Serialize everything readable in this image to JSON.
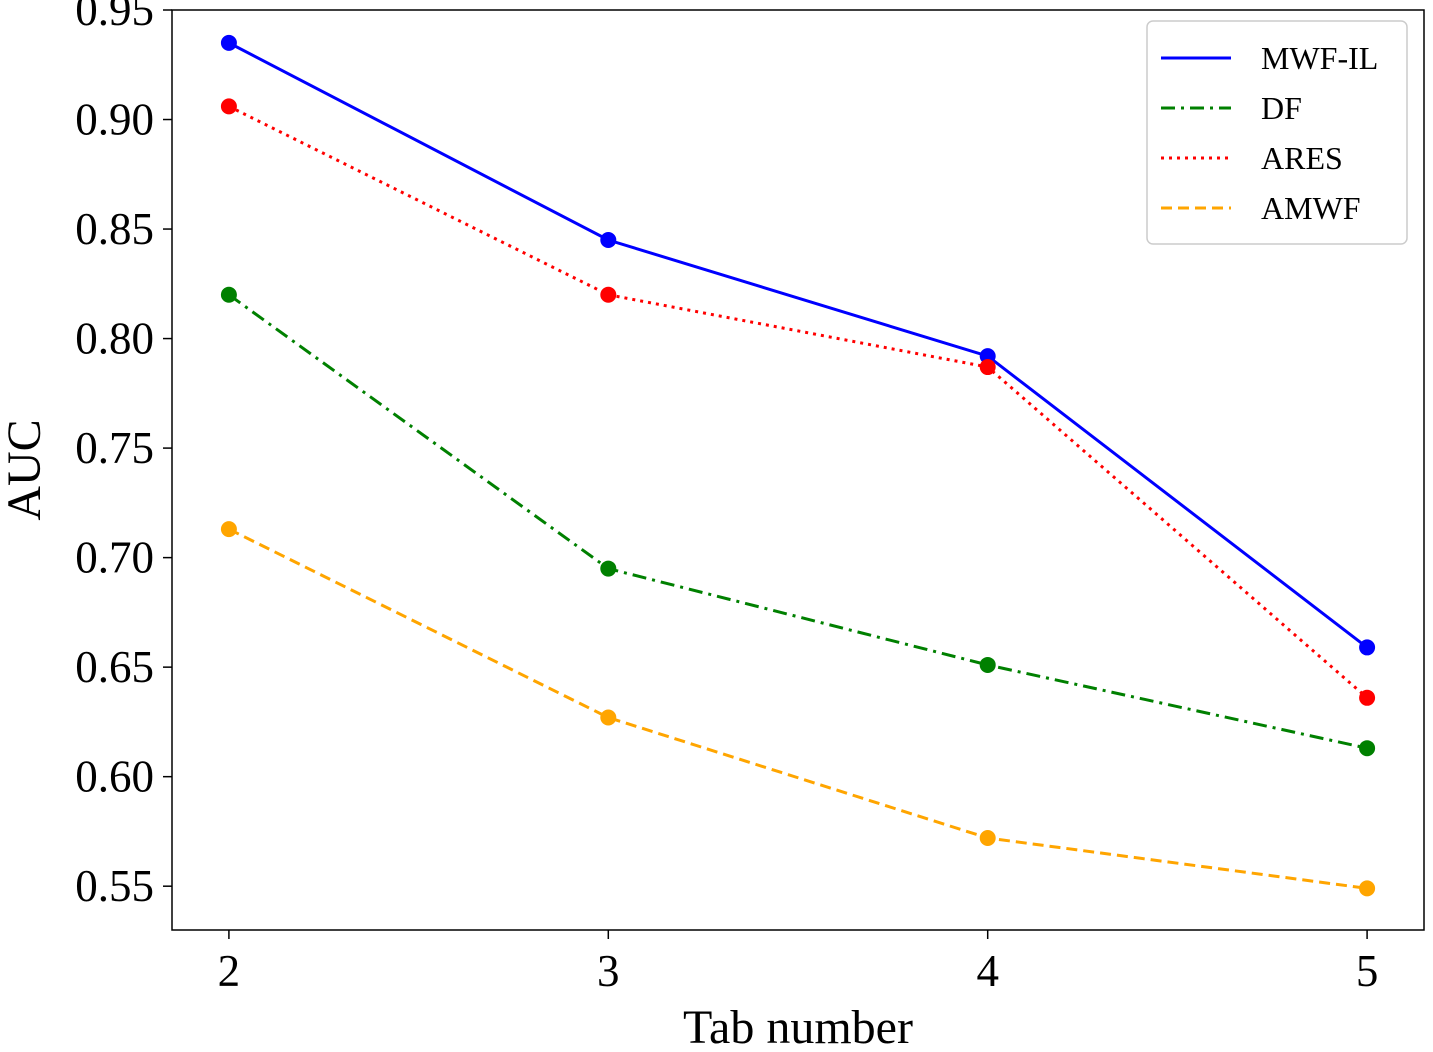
{
  "chart_data": {
    "type": "line",
    "title": "",
    "xlabel": "Tab number",
    "ylabel": "AUC",
    "x": [
      2,
      3,
      4,
      5
    ],
    "x_tick_labels": [
      "2",
      "3",
      "4",
      "5"
    ],
    "y_ticks": [
      0.55,
      0.6,
      0.65,
      0.7,
      0.75,
      0.8,
      0.85,
      0.9,
      0.95
    ],
    "y_tick_labels": [
      "0.55",
      "0.60",
      "0.65",
      "0.70",
      "0.75",
      "0.80",
      "0.85",
      "0.90",
      "0.95"
    ],
    "ylim": [
      0.53,
      0.95
    ],
    "xlim": [
      1.85,
      5.15
    ],
    "grid": false,
    "legend_position": "top-right",
    "series": [
      {
        "name": "MWF-IL",
        "values": [
          0.935,
          0.845,
          0.792,
          0.659
        ],
        "color": "#0000ff",
        "line_style": "solid",
        "marker": "circle"
      },
      {
        "name": "DF",
        "values": [
          0.82,
          0.695,
          0.651,
          0.613
        ],
        "color": "#008000",
        "line_style": "dashdot",
        "marker": "circle"
      },
      {
        "name": "ARES",
        "values": [
          0.906,
          0.82,
          0.787,
          0.636
        ],
        "color": "#ff0000",
        "line_style": "dotted",
        "marker": "circle"
      },
      {
        "name": "AMWF",
        "values": [
          0.713,
          0.627,
          0.572,
          0.549
        ],
        "color": "#ffa500",
        "line_style": "dashed",
        "marker": "circle"
      }
    ]
  }
}
